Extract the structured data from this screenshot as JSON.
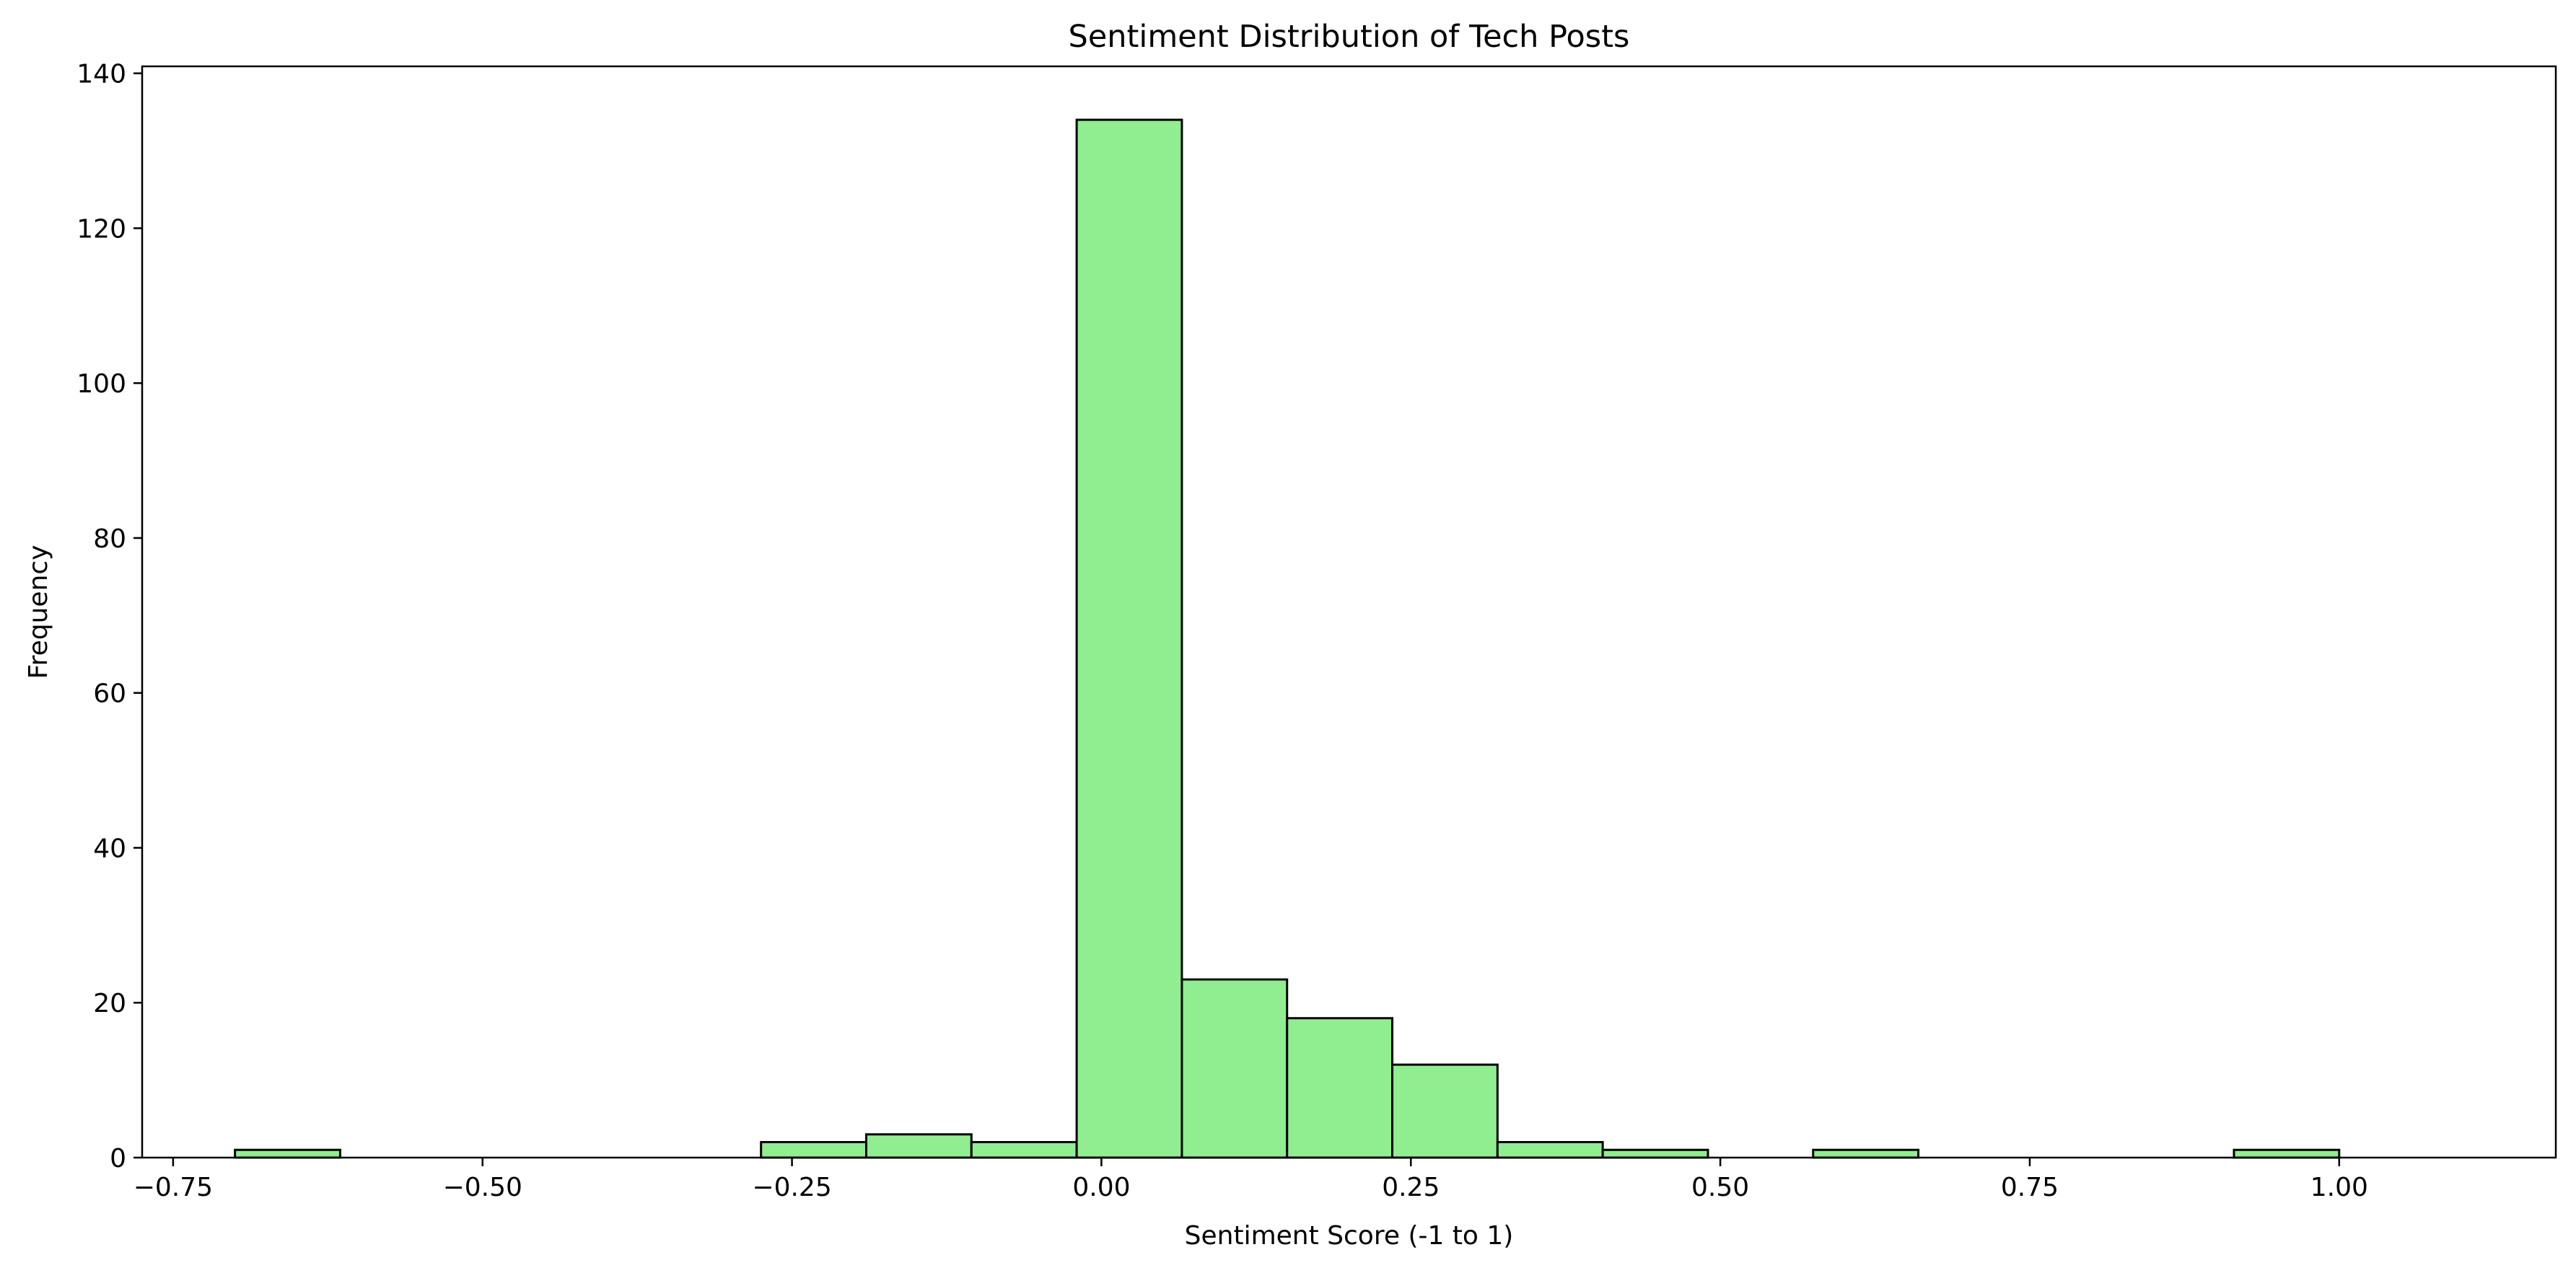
{
  "chart_data": {
    "type": "bar",
    "title": "Sentiment Distribution of Tech Posts",
    "xlabel": "Sentiment Score (-1 to 1)",
    "ylabel": "Frequency",
    "xlim": [
      -0.775,
      1.175
    ],
    "ylim": [
      0,
      140.9
    ],
    "x_ticks": [
      -0.75,
      -0.5,
      -0.25,
      0.0,
      0.25,
      0.5,
      0.75,
      1.0
    ],
    "x_tick_labels": [
      "−0.75",
      "−0.50",
      "−0.25",
      "0.00",
      "0.25",
      "0.50",
      "0.75",
      "1.00"
    ],
    "y_ticks": [
      0,
      20,
      40,
      60,
      80,
      100,
      120,
      140
    ],
    "y_tick_labels": [
      "0",
      "20",
      "40",
      "60",
      "80",
      "100",
      "120",
      "140"
    ],
    "bin_edges": [
      -0.7,
      -0.615,
      -0.53,
      -0.445,
      -0.36,
      -0.275,
      -0.19,
      -0.105,
      -0.02,
      0.065,
      0.15,
      0.235,
      0.32,
      0.405,
      0.49,
      0.575,
      0.66,
      0.745,
      0.83,
      0.915,
      1.0
    ],
    "values": [
      1,
      0,
      0,
      0,
      0,
      2,
      3,
      2,
      134,
      23,
      18,
      12,
      2,
      1,
      0,
      1,
      0,
      0,
      0,
      1
    ],
    "bar_color": "#90ee90",
    "edge_color": "#000000",
    "grid": false,
    "legend": "none"
  }
}
